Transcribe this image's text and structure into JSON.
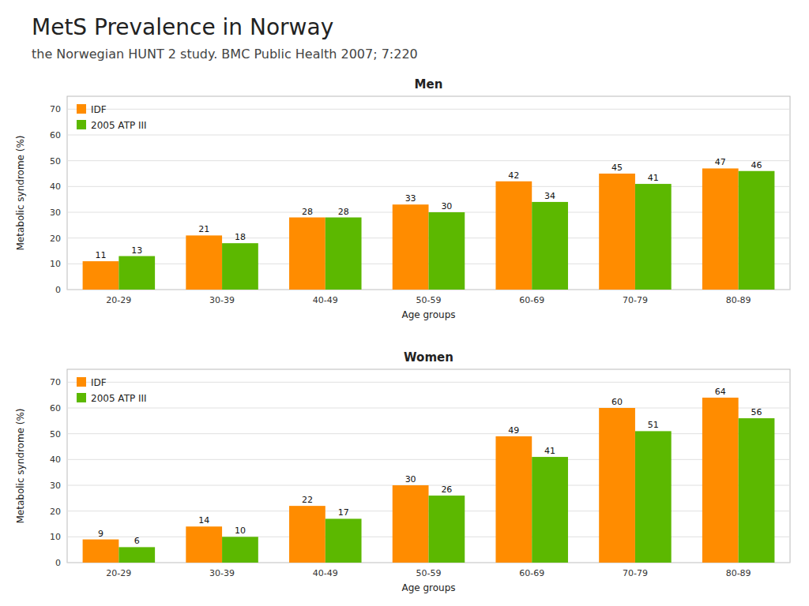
{
  "title": "MetS Prevalence in Norway",
  "subtitle": "the Norwegian HUNT 2 study. BMC Public Health 2007; 7:220",
  "chart_data": [
    {
      "type": "bar",
      "title": "Men",
      "categories": [
        "20-29",
        "30-39",
        "40-49",
        "50-59",
        "60-69",
        "70-79",
        "80-89"
      ],
      "series": [
        {
          "name": "IDF",
          "color": "#FF8C00",
          "values": [
            11,
            21,
            28,
            33,
            42,
            45,
            47
          ]
        },
        {
          "name": "2005 ATP III",
          "color": "#5CB800",
          "values": [
            13,
            18,
            28,
            30,
            34,
            41,
            46
          ]
        }
      ],
      "xlabel": "Age groups",
      "ylabel": "Metabolic syndrome (%)",
      "ylim": [
        0,
        75
      ],
      "yticks": [
        0,
        10,
        20,
        30,
        40,
        50,
        60,
        70
      ],
      "grid": true,
      "legend": "upper left",
      "data_labels": true
    },
    {
      "type": "bar",
      "title": "Women",
      "categories": [
        "20-29",
        "30-39",
        "40-49",
        "50-59",
        "60-69",
        "70-79",
        "80-89"
      ],
      "series": [
        {
          "name": "IDF",
          "color": "#FF8C00",
          "values": [
            9,
            14,
            22,
            30,
            49,
            60,
            64
          ]
        },
        {
          "name": "2005 ATP III",
          "color": "#5CB800",
          "values": [
            6,
            10,
            17,
            26,
            41,
            51,
            56
          ]
        }
      ],
      "xlabel": "Age groups",
      "ylabel": "Metabolic syndrome (%)",
      "ylim": [
        0,
        75
      ],
      "yticks": [
        0,
        10,
        20,
        30,
        40,
        50,
        60,
        70
      ],
      "grid": true,
      "legend": "upper left",
      "data_labels": true
    }
  ]
}
